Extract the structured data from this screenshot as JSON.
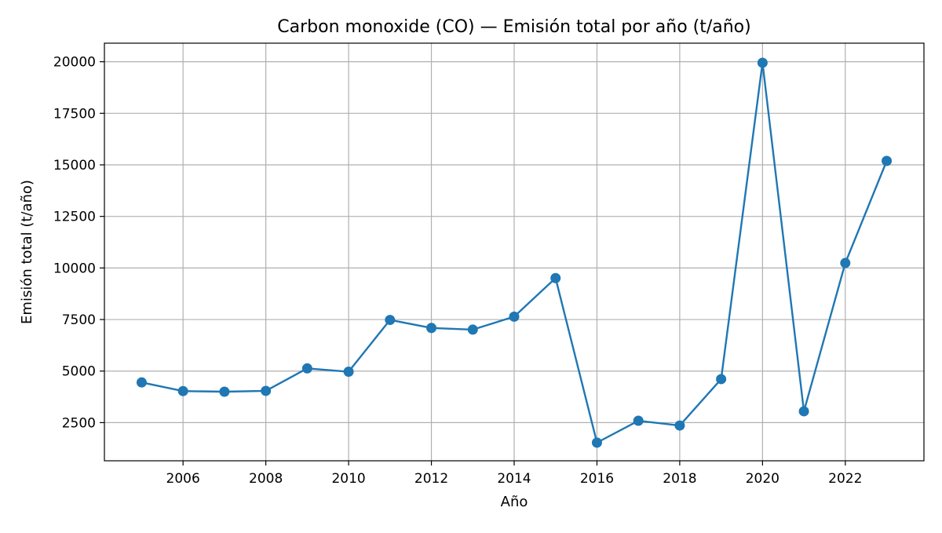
{
  "chart_data": {
    "type": "line",
    "title": "Carbon monoxide (CO) — Emisión total por año (t/año)",
    "xlabel": "Año",
    "ylabel": "Emisión total (t/año)",
    "xlim": [
      2004.1,
      2023.9
    ],
    "ylim": [
      650,
      20900
    ],
    "x_ticks": [
      2006,
      2008,
      2010,
      2012,
      2014,
      2016,
      2018,
      2020,
      2022
    ],
    "y_ticks": [
      2500,
      5000,
      7500,
      10000,
      12500,
      15000,
      17500,
      20000
    ],
    "grid": true,
    "color": "#1f77b4",
    "marker": "circle",
    "x": [
      2005,
      2006,
      2007,
      2008,
      2009,
      2010,
      2011,
      2012,
      2013,
      2014,
      2015,
      2016,
      2017,
      2018,
      2019,
      2020,
      2021,
      2022,
      2023
    ],
    "y": [
      4450,
      4030,
      4000,
      4040,
      5130,
      4970,
      7480,
      7090,
      7010,
      7640,
      9510,
      1530,
      2590,
      2360,
      4610,
      19950,
      3050,
      10240,
      15190
    ]
  }
}
